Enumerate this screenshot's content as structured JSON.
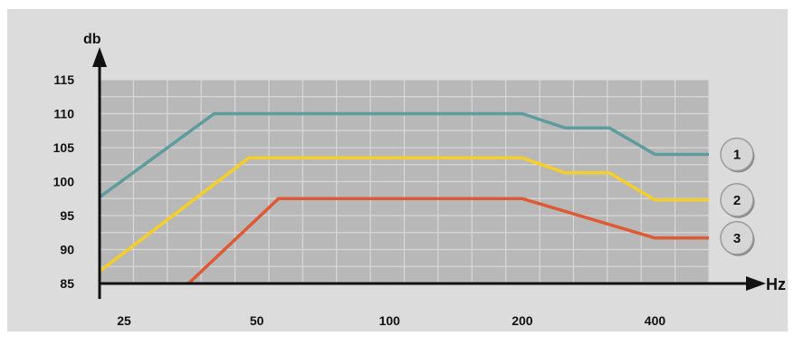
{
  "chart_data": {
    "type": "line",
    "title": "",
    "ylabel": "db",
    "xlabel": "Hz",
    "x_scale": "log2",
    "xlim": [
      22,
      530
    ],
    "ylim": [
      85,
      115
    ],
    "grid": true,
    "x_ticks": [
      {
        "value": 25,
        "label": "25"
      },
      {
        "value": 50,
        "label": "50"
      },
      {
        "value": 100,
        "label": "100"
      },
      {
        "value": 200,
        "label": "200"
      },
      {
        "value": 400,
        "label": "400"
      }
    ],
    "y_ticks": [
      {
        "value": 85,
        "label": "85"
      },
      {
        "value": 90,
        "label": "90"
      },
      {
        "value": 95,
        "label": "95"
      },
      {
        "value": 100,
        "label": "100"
      },
      {
        "value": 105,
        "label": "105"
      },
      {
        "value": 110,
        "label": "110"
      },
      {
        "value": 115,
        "label": "115"
      }
    ],
    "series": [
      {
        "marker_label": "1",
        "color": "#5f9c9e",
        "points": [
          [
            22,
            97.7
          ],
          [
            40,
            110
          ],
          [
            200,
            110
          ],
          [
            250,
            107.9
          ],
          [
            315,
            107.9
          ],
          [
            400,
            104
          ],
          [
            530,
            104
          ]
        ]
      },
      {
        "marker_label": "2",
        "color": "#f4cf2a",
        "points": [
          [
            22,
            86.8
          ],
          [
            48,
            103.5
          ],
          [
            200,
            103.5
          ],
          [
            250,
            101.3
          ],
          [
            315,
            101.3
          ],
          [
            400,
            97.3
          ],
          [
            530,
            97.3
          ]
        ]
      },
      {
        "marker_label": "3",
        "color": "#de5a35",
        "points": [
          [
            35,
            85
          ],
          [
            56,
            97.5
          ],
          [
            200,
            97.5
          ],
          [
            400,
            91.7
          ],
          [
            530,
            91.7
          ]
        ]
      }
    ]
  },
  "colors": {
    "background": "#dcdcdc",
    "plot_area": "#b8b8b8",
    "grid": "#d8d8d8",
    "axis": "#111111"
  }
}
